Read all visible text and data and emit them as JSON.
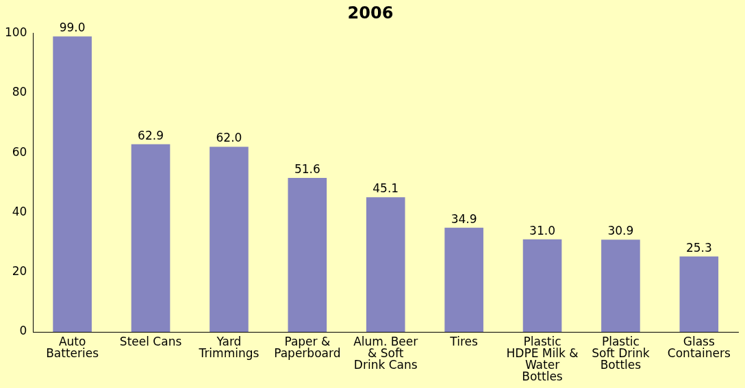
{
  "chart_data": {
    "type": "bar",
    "title": "2006",
    "categories": [
      "Auto Batteries",
      "Steel Cans",
      "Yard Trimmings",
      "Paper & Paperboard",
      "Alum. Beer & Soft Drink Cans",
      "Tires",
      "Plastic HDPE Milk & Water Bottles",
      "Plastic Soft Drink Bottles",
      "Glass Containers"
    ],
    "values": [
      99.0,
      62.9,
      62.0,
      51.6,
      45.1,
      34.9,
      31.0,
      30.9,
      25.3
    ],
    "value_labels": [
      "99.0",
      "62.9",
      "62.0",
      "51.6",
      "45.1",
      "34.9",
      "31.0",
      "30.9",
      "25.3"
    ],
    "color": "#8585c0",
    "ylim": [
      0,
      100
    ],
    "yticks": [
      0,
      20,
      40,
      60,
      80,
      100
    ],
    "grid": false,
    "legend": false
  }
}
